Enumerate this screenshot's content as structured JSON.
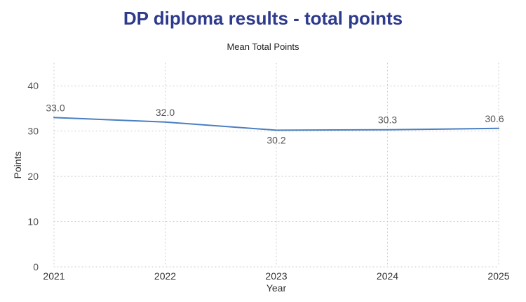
{
  "title": "DP diploma results - total points",
  "subtitle": "Mean Total Points",
  "chart_data": {
    "type": "line",
    "title": "DP diploma results - total points",
    "subtitle": "Mean Total Points",
    "xlabel": "Year",
    "ylabel": "Points",
    "categories": [
      "2021",
      "2022",
      "2023",
      "2024",
      "2025"
    ],
    "series": [
      {
        "values": [
          33.0,
          32.0,
          30.2,
          30.3,
          30.6
        ],
        "labels": [
          "33.0",
          "32.0",
          "30.2",
          "30.3",
          "30.6"
        ],
        "label_position": [
          "above",
          "above",
          "below",
          "above",
          "above"
        ],
        "color": "#4a7fc1"
      }
    ],
    "ylim": [
      0,
      45
    ],
    "yticks": [
      0,
      10,
      20,
      30,
      40
    ],
    "grid": true,
    "grid_style": "dotted",
    "legend": "none"
  }
}
